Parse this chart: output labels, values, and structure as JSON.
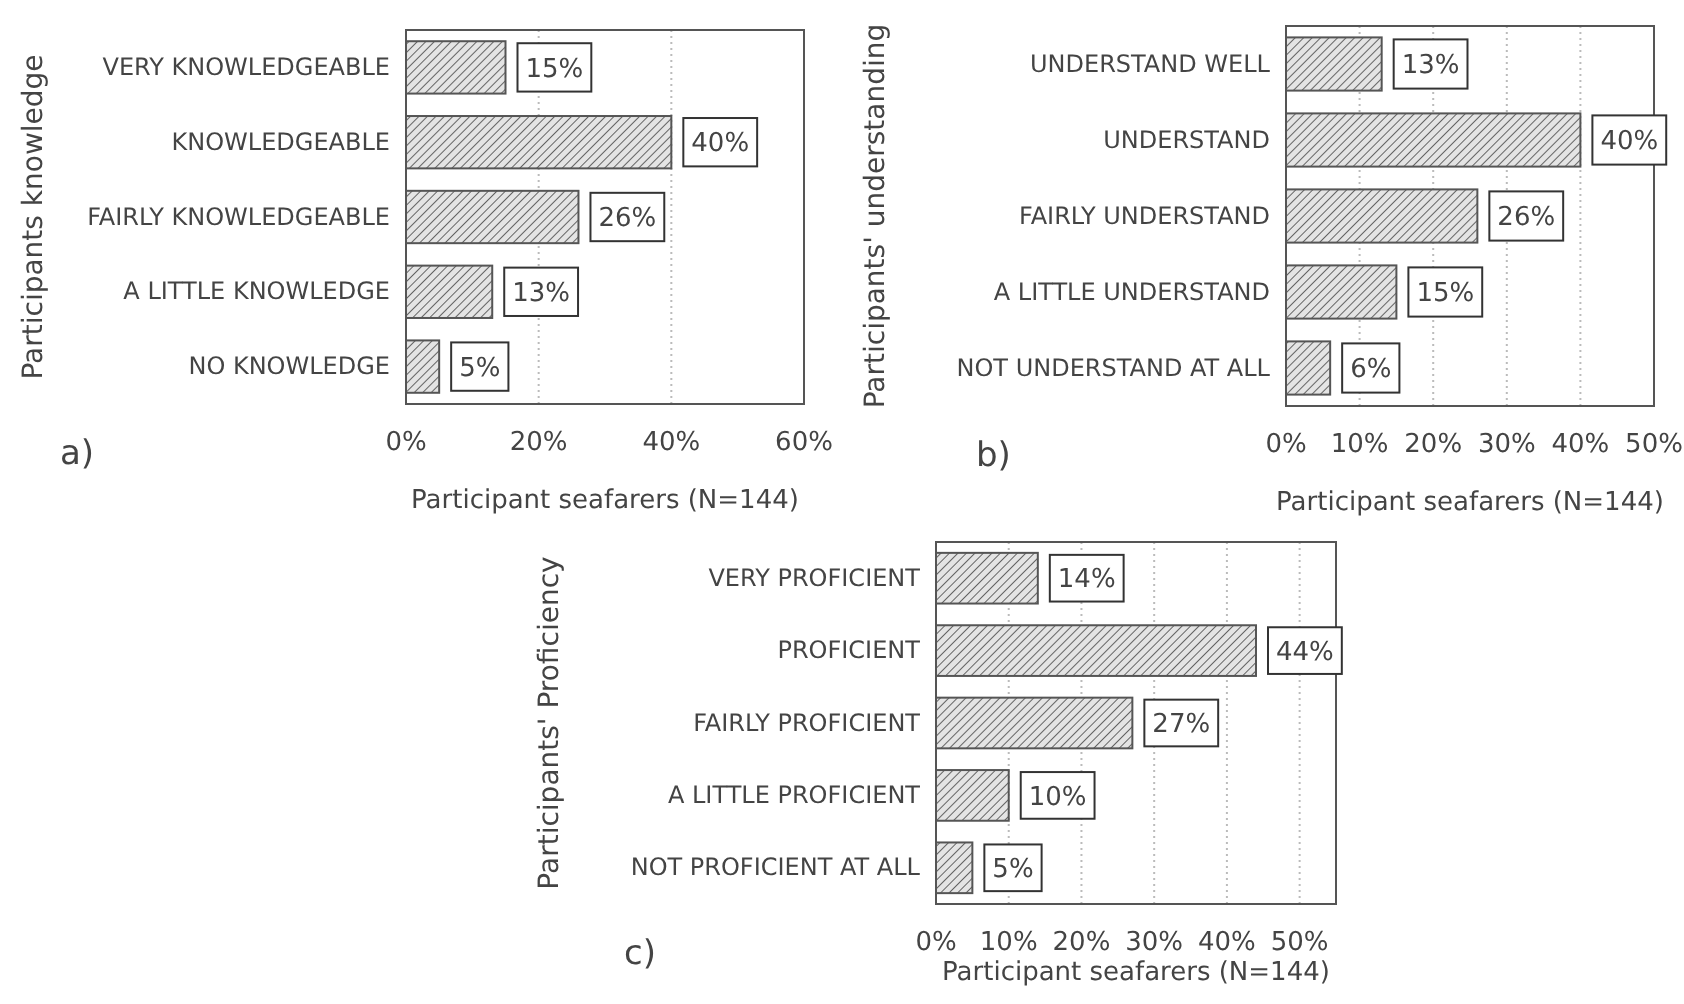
{
  "chart_data": [
    {
      "type": "bar",
      "orientation": "horizontal",
      "ylabel": "Participants knowledge",
      "xlabel": "Participant seafarers (N=144)",
      "annotations": [
        "a)"
      ],
      "categories": [
        "VERY KNOWLEDGEABLE",
        "KNOWLEDGEABLE",
        "FAIRLY KNOWLEDGEABLE",
        "A LITTLE KNOWLEDGE",
        "NO KNOWLEDGE"
      ],
      "values": [
        15,
        40,
        26,
        13,
        5
      ],
      "value_labels": [
        "15%",
        "40%",
        "26%",
        "13%",
        "5%"
      ],
      "color": "#555555",
      "xlim": [
        0,
        60
      ],
      "xticks": [
        {
          "value": 0,
          "label": "0%"
        },
        {
          "value": 20,
          "label": "20%"
        },
        {
          "value": 40,
          "label": "40%"
        },
        {
          "value": 60,
          "label": "60%"
        }
      ],
      "grid": "x"
    },
    {
      "type": "bar",
      "orientation": "horizontal",
      "ylabel": "Participants' understanding",
      "xlabel": "Participant seafarers (N=144)",
      "annotations": [
        "b)"
      ],
      "categories": [
        "UNDERSTAND WELL",
        "UNDERSTAND",
        "FAIRLY UNDERSTAND",
        "A LITTLE UNDERSTAND",
        "NOT UNDERSTAND AT ALL"
      ],
      "values": [
        13,
        40,
        26,
        15,
        6
      ],
      "value_labels": [
        "13%",
        "40%",
        "26%",
        "15%",
        "6%"
      ],
      "color": "#555555",
      "xlim": [
        0,
        50
      ],
      "xticks": [
        {
          "value": 0,
          "label": "0%"
        },
        {
          "value": 10,
          "label": "10%"
        },
        {
          "value": 20,
          "label": "20%"
        },
        {
          "value": 30,
          "label": "30%"
        },
        {
          "value": 40,
          "label": "40%"
        },
        {
          "value": 50,
          "label": "50%"
        }
      ],
      "grid": "x"
    },
    {
      "type": "bar",
      "orientation": "horizontal",
      "ylabel": "Participants' Proficiency",
      "xlabel": "Participant seafarers (N=144)",
      "annotations": [
        "c)"
      ],
      "categories": [
        "VERY PROFICIENT",
        "PROFICIENT",
        "FAIRLY PROFICIENT",
        "A LITTLE PROFICIENT",
        "NOT PROFICIENT AT ALL"
      ],
      "values": [
        14,
        44,
        27,
        10,
        5
      ],
      "value_labels": [
        "14%",
        "44%",
        "27%",
        "10%",
        "5%"
      ],
      "color": "#555555",
      "xlim": [
        0,
        55
      ],
      "xticks": [
        {
          "value": 0,
          "label": "0%"
        },
        {
          "value": 10,
          "label": "10%"
        },
        {
          "value": 20,
          "label": "20%"
        },
        {
          "value": 30,
          "label": "30%"
        },
        {
          "value": 40,
          "label": "40%"
        },
        {
          "value": 50,
          "label": "50%"
        }
      ],
      "grid": "x"
    }
  ]
}
